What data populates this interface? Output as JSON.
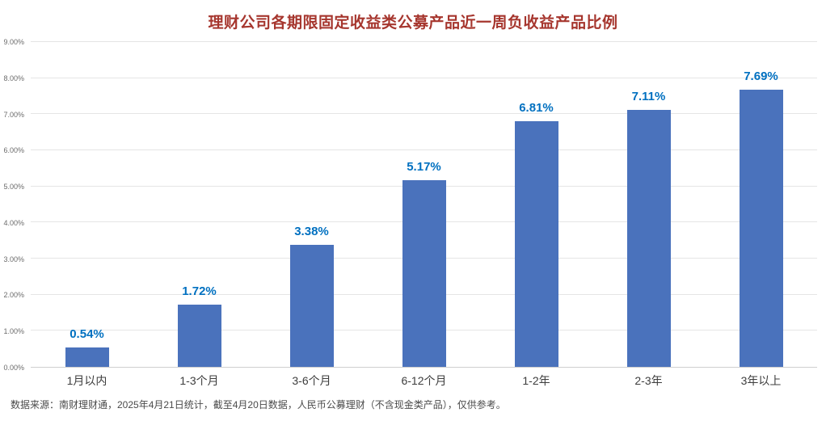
{
  "title": "理财公司各期限固定收益类公募产品近一周负收益产品比例",
  "footer": "数据来源：南财理财通，2025年4月21日统计，截至4月20日数据，人民币公募理财（不含现金类产品），仅供参考。",
  "colors": {
    "title": "#A6362E",
    "bar": "#4A72BC",
    "value_label": "#0070C0",
    "grid": "#E5E5E5",
    "axis_text": "#6B6B6B",
    "category_text": "#3D3D3D",
    "footer_text": "#4A4A4A",
    "background": "#FFFFFF"
  },
  "chart_data": {
    "type": "bar",
    "title": "理财公司各期限固定收益类公募产品近一周负收益产品比例",
    "categories": [
      "1月以内",
      "1-3个月",
      "3-6个月",
      "6-12个月",
      "1-2年",
      "2-3年",
      "3年以上"
    ],
    "values": [
      0.54,
      1.72,
      3.38,
      5.17,
      6.81,
      7.11,
      7.69
    ],
    "value_labels": [
      "0.54%",
      "1.72%",
      "3.38%",
      "5.17%",
      "6.81%",
      "7.11%",
      "7.69%"
    ],
    "xlabel": "",
    "ylabel": "",
    "ylim": [
      0,
      9
    ],
    "ytick_step": 1,
    "ytick_labels": [
      "0.00%",
      "1.00%",
      "2.00%",
      "3.00%",
      "4.00%",
      "5.00%",
      "6.00%",
      "7.00%",
      "8.00%",
      "9.00%"
    ],
    "grid": true,
    "legend": false
  }
}
